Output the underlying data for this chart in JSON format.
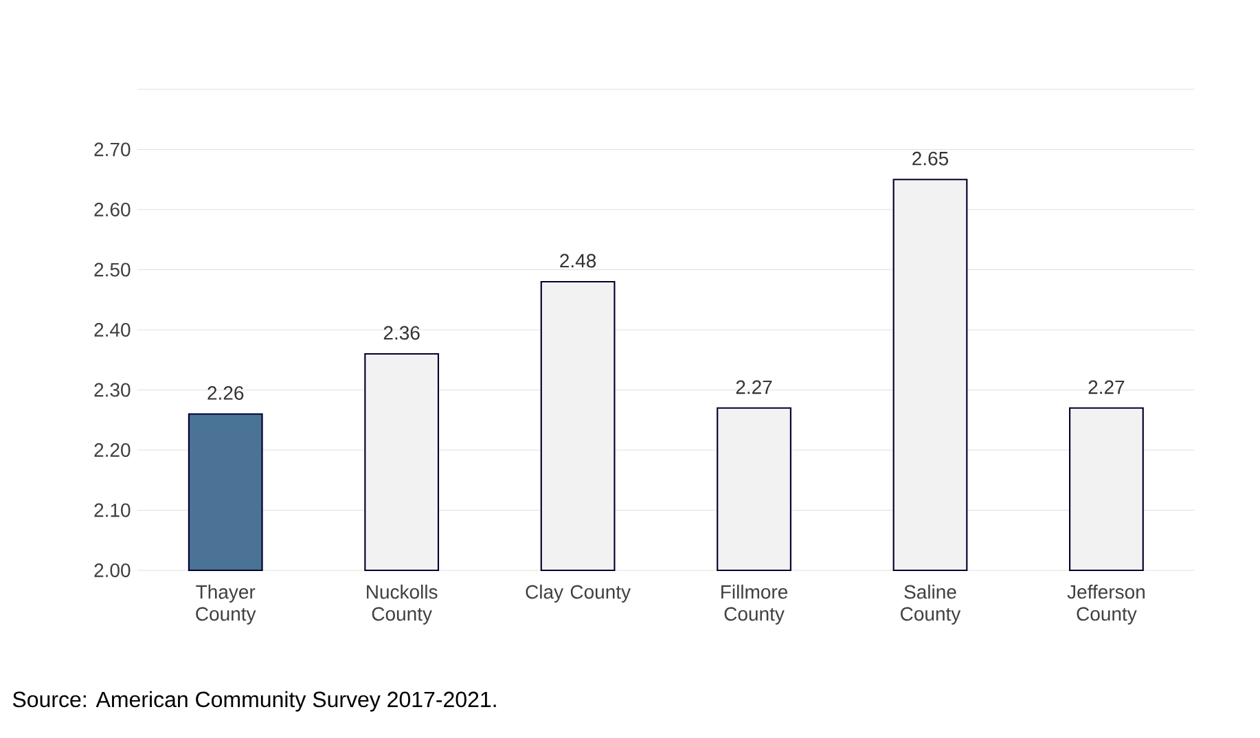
{
  "chart_data": {
    "type": "bar",
    "categories": [
      "Thayer County",
      "Nuckolls County",
      "Clay County",
      "Fillmore County",
      "Saline County",
      "Jefferson County"
    ],
    "values": [
      2.26,
      2.36,
      2.48,
      2.27,
      2.65,
      2.27
    ],
    "colors": [
      "#4a7396",
      "#f2f2f2",
      "#f2f2f2",
      "#f2f2f2",
      "#f2f2f2",
      "#f2f2f2"
    ],
    "ylim": [
      2.0,
      2.8
    ],
    "yticks": [
      {
        "value": 2.0,
        "label": "2.00"
      },
      {
        "value": 2.1,
        "label": "2.10"
      },
      {
        "value": 2.2,
        "label": "2.20"
      },
      {
        "value": 2.3,
        "label": "2.30"
      },
      {
        "value": 2.4,
        "label": "2.40"
      },
      {
        "value": 2.5,
        "label": "2.50"
      },
      {
        "value": 2.6,
        "label": "2.60"
      },
      {
        "value": 2.7,
        "label": "2.70"
      },
      {
        "value": 2.8,
        "label": null
      }
    ],
    "grid": "y",
    "data_labels": true,
    "annotations": [
      "Source: American Community Survey 2017-2021."
    ]
  }
}
